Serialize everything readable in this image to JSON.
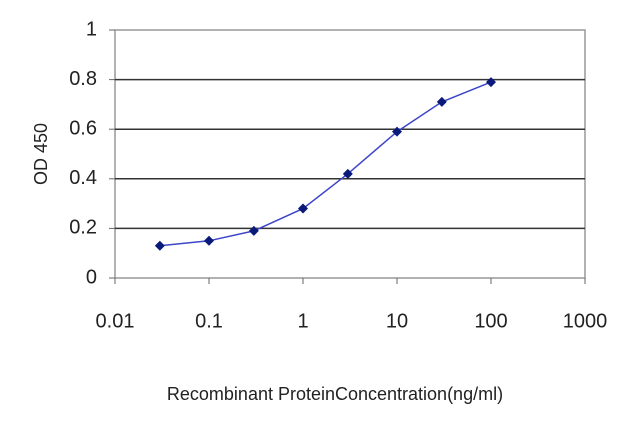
{
  "chart_data": {
    "type": "line",
    "x_label": "Recombinant ProteinConcentration(ng/ml)",
    "y_label": "OD 450",
    "x": [
      0.03,
      0.1,
      0.3,
      1,
      3,
      10,
      30,
      100
    ],
    "series": [
      {
        "color": "#3d46c8",
        "marker_color": "#0a1a7a",
        "values": [
          0.13,
          0.15,
          0.19,
          0.28,
          0.42,
          0.59,
          0.71,
          0.79
        ]
      }
    ],
    "xlim": [
      0.01,
      1000
    ],
    "xticks": [
      0.01,
      0.1,
      1,
      10,
      100,
      1000
    ],
    "xscale": "log",
    "ylim": [
      0,
      1
    ],
    "yticks": [
      0,
      0.2,
      0.4,
      0.6,
      0.8,
      1
    ],
    "grid": true
  }
}
